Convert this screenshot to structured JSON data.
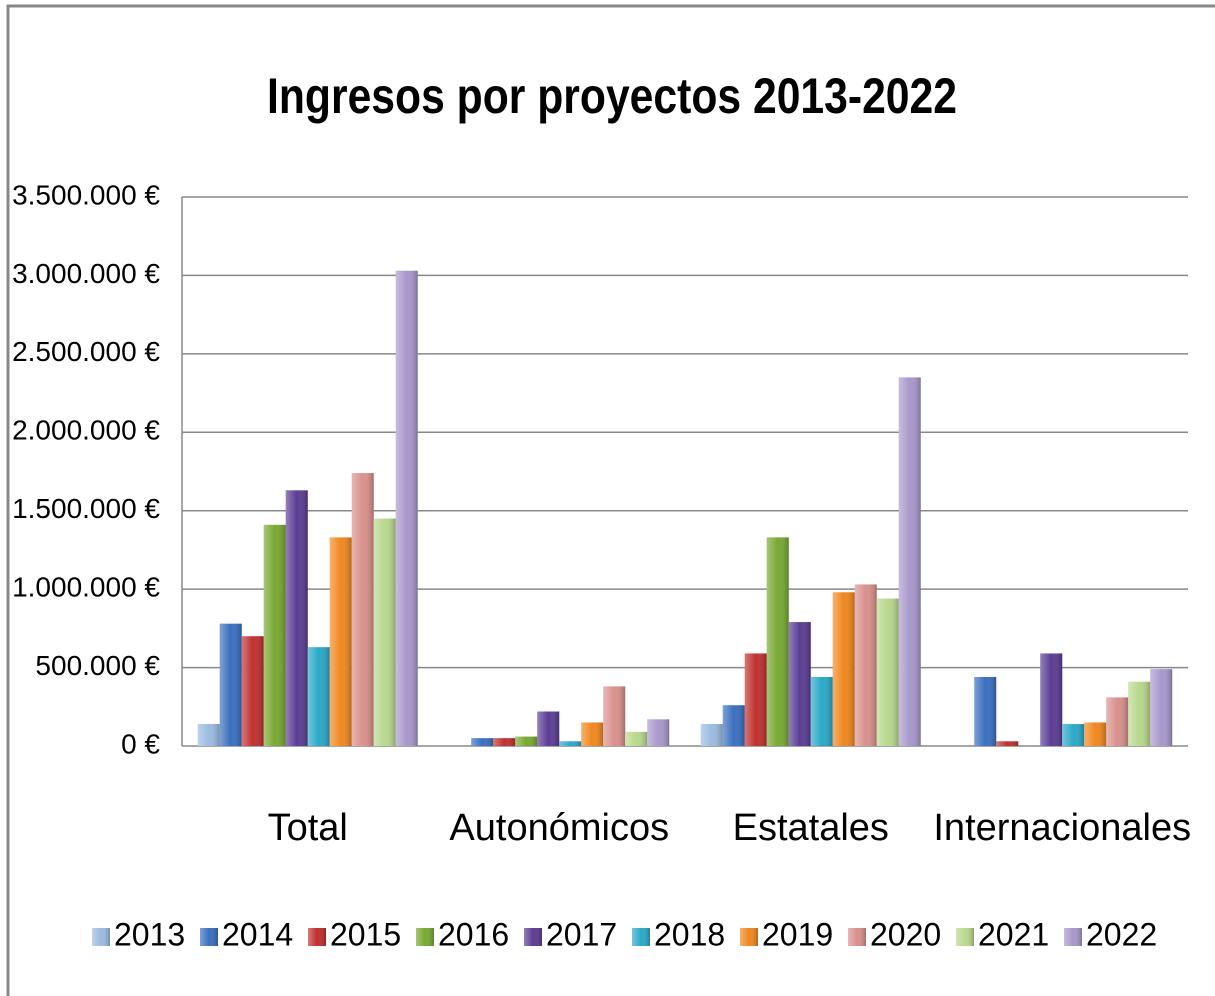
{
  "chart_data": {
    "type": "bar",
    "title": "Ingresos por proyectos 2013-2022",
    "categories": [
      "Total",
      "Autonómicos",
      "Estatales",
      "Internacionales"
    ],
    "series": [
      {
        "name": "2013",
        "color": "#9bbbe0",
        "values": [
          140000,
          0,
          140000,
          0
        ]
      },
      {
        "name": "2014",
        "color": "#3a6fc0",
        "values": [
          780000,
          50000,
          260000,
          440000
        ]
      },
      {
        "name": "2015",
        "color": "#c0302e",
        "values": [
          700000,
          50000,
          590000,
          30000
        ]
      },
      {
        "name": "2016",
        "color": "#78a832",
        "values": [
          1410000,
          60000,
          1330000,
          0
        ]
      },
      {
        "name": "2017",
        "color": "#5b3c94",
        "values": [
          1630000,
          220000,
          790000,
          590000
        ]
      },
      {
        "name": "2018",
        "color": "#2aa8c8",
        "values": [
          630000,
          30000,
          440000,
          140000
        ]
      },
      {
        "name": "2019",
        "color": "#f0871e",
        "values": [
          1330000,
          150000,
          980000,
          150000
        ]
      },
      {
        "name": "2020",
        "color": "#d9908c",
        "values": [
          1740000,
          380000,
          1030000,
          310000
        ]
      },
      {
        "name": "2021",
        "color": "#b8d88c",
        "values": [
          1450000,
          90000,
          940000,
          410000
        ]
      },
      {
        "name": "2022",
        "color": "#a898cc",
        "values": [
          3030000,
          170000,
          2350000,
          490000
        ]
      }
    ],
    "ylim": [
      0,
      3500000
    ],
    "yticks": [
      {
        "value": 0,
        "label": "0 €"
      },
      {
        "value": 500000,
        "label": "500.000 €"
      },
      {
        "value": 1000000,
        "label": "1.000.000 €"
      },
      {
        "value": 1500000,
        "label": "1.500.000 €"
      },
      {
        "value": 2000000,
        "label": "2.000.000 €"
      },
      {
        "value": 2500000,
        "label": "2.500.000 €"
      },
      {
        "value": 3000000,
        "label": "3.000.000 €"
      },
      {
        "value": 3500000,
        "label": "3.500.000 €"
      }
    ],
    "grid": true,
    "legend": "bottom"
  }
}
